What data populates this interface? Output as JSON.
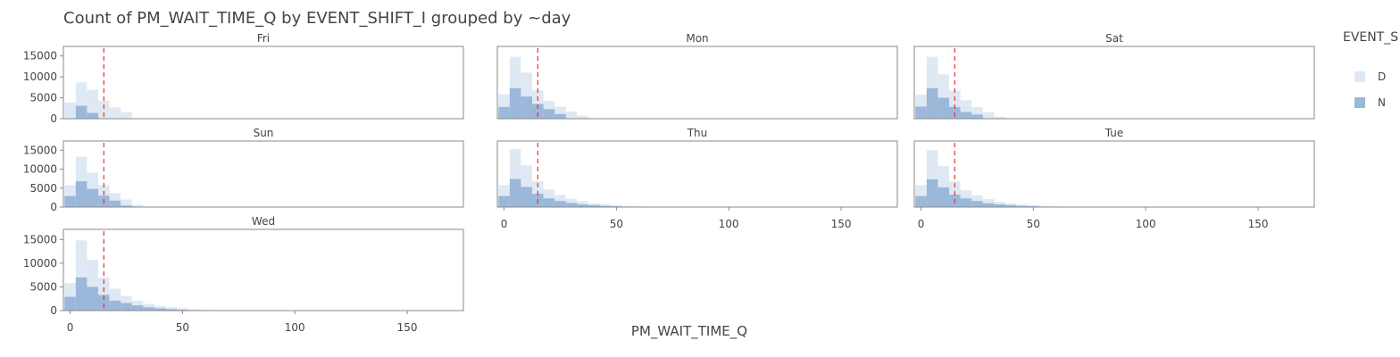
{
  "chart_data": {
    "type": "bar",
    "subtype": "faceted-overlaid-histogram",
    "title": "Count of PM_WAIT_TIME_Q by EVENT_SHIFT_I grouped by ~day",
    "xlabel": "PM_WAIT_TIME_Q",
    "ylabel": "",
    "legend": {
      "title": "EVENT_S",
      "position": "right"
    },
    "colors": {
      "D": "#dfe9f3",
      "N": "#9bb8da",
      "reference_line": "#e0323b"
    },
    "bin_width": 5,
    "x_bin_centers": [
      0,
      5,
      10,
      15,
      20,
      25,
      30,
      35,
      40,
      45,
      50,
      55,
      60,
      65,
      70,
      75
    ],
    "xlim": [
      -3,
      175
    ],
    "ylim": [
      0,
      16000
    ],
    "x_ticks": [
      0,
      50,
      100,
      150
    ],
    "y_ticks": [
      0,
      5000,
      10000,
      15000
    ],
    "reference_line_x": 15,
    "series_names": [
      "D",
      "N"
    ],
    "facets": [
      {
        "label": "Fri",
        "D": [
          3900,
          8700,
          6900,
          4300,
          2700,
          1600
        ],
        "N": [
          0,
          3100,
          1400,
          0,
          0,
          0
        ]
      },
      {
        "label": "Mon",
        "D": [
          5800,
          14800,
          11000,
          6800,
          4300,
          2900,
          1700,
          700
        ],
        "N": [
          2800,
          7300,
          5300,
          3500,
          2300,
          1100,
          0,
          0
        ]
      },
      {
        "label": "Sat",
        "D": [
          5700,
          14800,
          10600,
          6700,
          4400,
          2800,
          1600,
          500
        ],
        "N": [
          2900,
          7300,
          5000,
          2800,
          1600,
          1000,
          0,
          0
        ]
      },
      {
        "label": "Sun",
        "D": [
          5800,
          13300,
          9100,
          5800,
          3700,
          2000,
          600
        ],
        "N": [
          2900,
          6800,
          4800,
          3000,
          1700,
          400,
          0
        ]
      },
      {
        "label": "Thu",
        "D": [
          5800,
          15300,
          11000,
          6800,
          4600,
          3200,
          2200,
          1500,
          1000,
          700,
          500,
          300,
          200,
          100,
          80,
          40
        ],
        "N": [
          2900,
          7400,
          5300,
          3500,
          2300,
          1600,
          1100,
          700,
          500,
          300,
          200,
          100,
          60,
          40,
          20,
          10
        ]
      },
      {
        "label": "Tue",
        "D": [
          5800,
          15000,
          10800,
          6800,
          4500,
          3100,
          2100,
          1400,
          1000,
          700,
          500,
          300,
          200,
          100,
          80,
          40
        ],
        "N": [
          2900,
          7300,
          5200,
          3300,
          2300,
          1600,
          1000,
          700,
          500,
          300,
          200,
          100,
          60,
          40,
          20,
          10
        ]
      },
      {
        "label": "Wed",
        "D": [
          5800,
          14800,
          10700,
          7000,
          4600,
          3100,
          2100,
          1400,
          1000,
          700,
          500,
          300,
          200,
          100,
          80,
          40
        ],
        "N": [
          2900,
          7000,
          5000,
          3300,
          2100,
          1600,
          1100,
          700,
          500,
          300,
          200,
          100,
          60,
          40,
          20,
          10
        ]
      }
    ]
  }
}
